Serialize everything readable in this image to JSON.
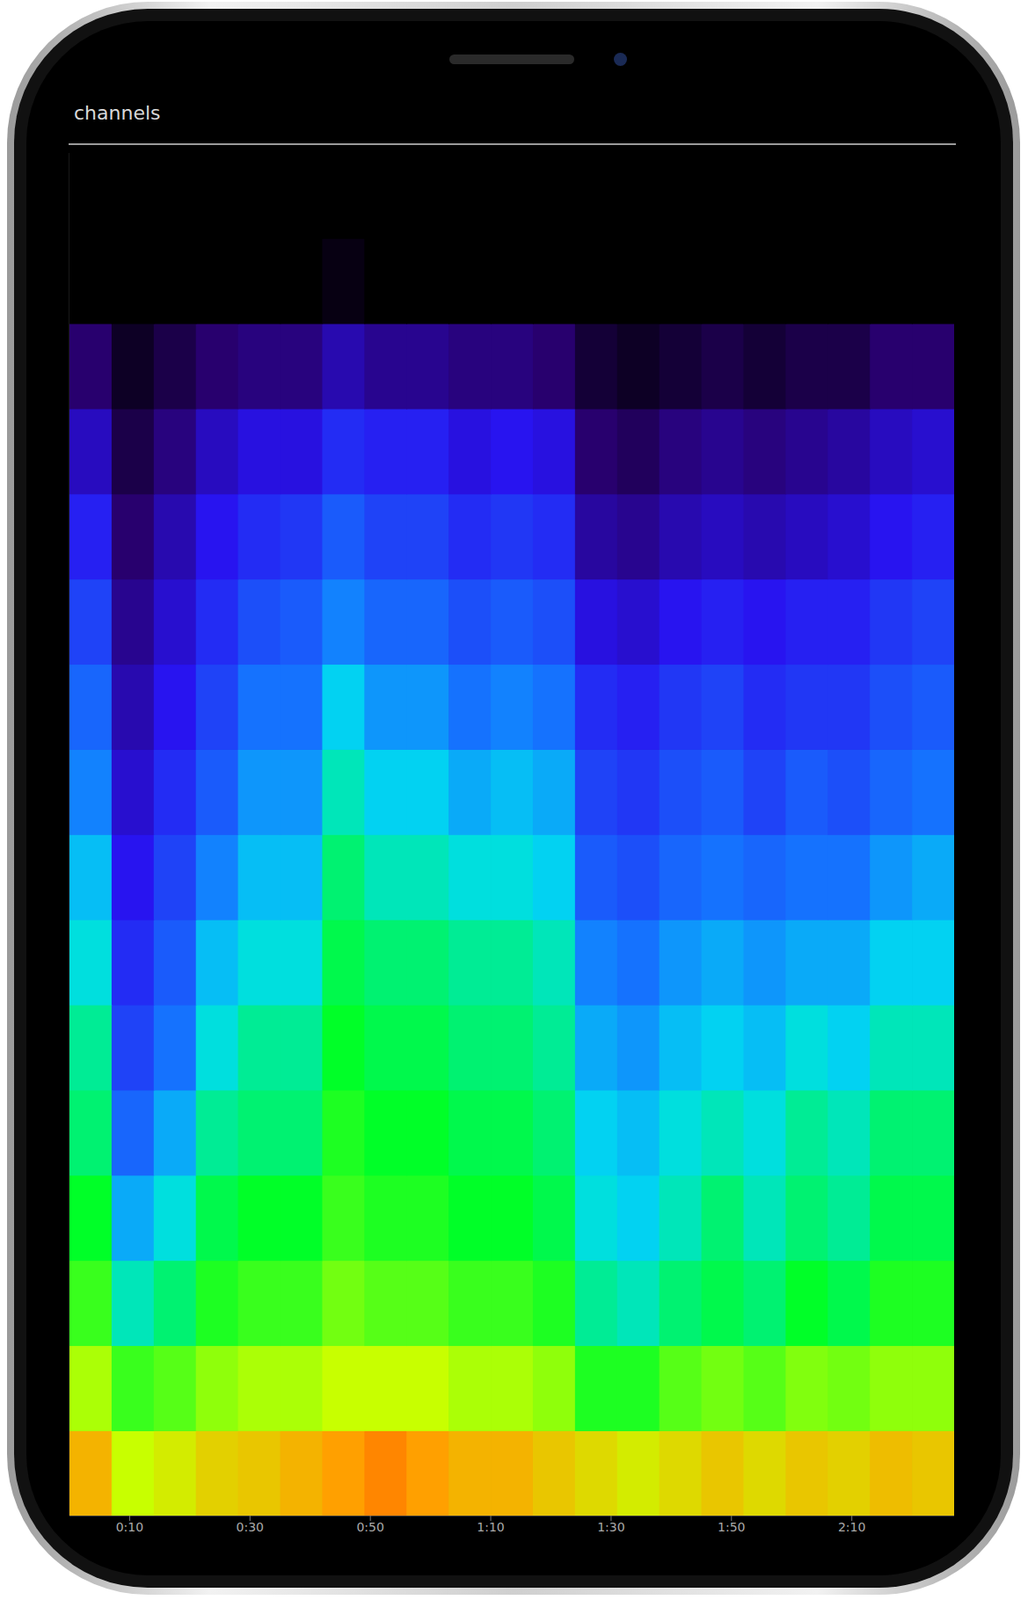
{
  "chart_data": {
    "type": "heatmap",
    "title": "channels",
    "x": [
      3.5,
      10.5,
      17.5,
      24.5,
      31.5,
      38.5,
      45.5,
      52.5,
      59.5,
      66.5,
      73.5,
      80.5,
      87.5,
      94.5,
      101.5,
      108.5,
      115.5,
      122.5,
      129.5,
      136.5,
      143.5
    ],
    "y": [
      0.5,
      1.5,
      2.5,
      3.5,
      4.5,
      5.5,
      6.5,
      7.5,
      8.5,
      9.5,
      10.5,
      11.5,
      12.5,
      13.5,
      14.5,
      15.5
    ],
    "cells": [
      [
        88,
        80,
        82,
        85,
        86,
        88,
        90,
        92,
        90,
        88,
        88,
        86,
        84,
        82,
        84,
        86,
        84,
        86,
        85,
        87,
        86
      ],
      [
        78,
        70,
        72,
        76,
        78,
        78,
        80,
        80,
        80,
        78,
        78,
        76,
        68,
        68,
        72,
        74,
        72,
        75,
        74,
        76,
        76
      ],
      [
        70,
        58,
        62,
        68,
        70,
        70,
        74,
        72,
        72,
        70,
        70,
        68,
        60,
        58,
        62,
        64,
        62,
        66,
        64,
        68,
        68
      ],
      [
        66,
        50,
        56,
        64,
        66,
        66,
        70,
        68,
        68,
        66,
        66,
        64,
        56,
        54,
        58,
        62,
        58,
        62,
        60,
        64,
        64
      ],
      [
        62,
        42,
        50,
        60,
        62,
        62,
        68,
        66,
        66,
        64,
        64,
        62,
        54,
        52,
        56,
        58,
        56,
        60,
        58,
        62,
        62
      ],
      [
        60,
        36,
        44,
        56,
        60,
        60,
        66,
        64,
        64,
        62,
        62,
        60,
        50,
        48,
        52,
        54,
        52,
        56,
        54,
        58,
        58
      ],
      [
        56,
        32,
        40,
        52,
        56,
        56,
        64,
        62,
        62,
        60,
        60,
        58,
        46,
        44,
        48,
        50,
        48,
        50,
        50,
        54,
        54
      ],
      [
        52,
        28,
        36,
        46,
        52,
        52,
        62,
        58,
        58,
        56,
        56,
        54,
        40,
        38,
        42,
        44,
        42,
        44,
        44,
        48,
        50
      ],
      [
        46,
        24,
        32,
        40,
        48,
        48,
        58,
        54,
        54,
        50,
        52,
        50,
        36,
        34,
        38,
        40,
        36,
        40,
        38,
        42,
        44
      ],
      [
        42,
        20,
        28,
        36,
        44,
        44,
        54,
        48,
        48,
        44,
        46,
        44,
        32,
        30,
        34,
        36,
        32,
        34,
        34,
        38,
        40
      ],
      [
        36,
        16,
        24,
        32,
        38,
        40,
        46,
        42,
        42,
        38,
        40,
        38,
        26,
        24,
        28,
        30,
        28,
        30,
        30,
        34,
        36
      ],
      [
        30,
        12,
        20,
        28,
        32,
        34,
        40,
        36,
        36,
        32,
        34,
        32,
        18,
        16,
        20,
        22,
        20,
        22,
        24,
        28,
        30
      ],
      [
        22,
        8,
        14,
        22,
        26,
        26,
        32,
        30,
        30,
        26,
        28,
        26,
        12,
        10,
        14,
        16,
        14,
        16,
        18,
        22,
        24
      ],
      [
        12,
        4,
        8,
        12,
        14,
        14,
        20,
        16,
        16,
        14,
        14,
        12,
        6,
        4,
        6,
        8,
        6,
        8,
        8,
        12,
        12
      ],
      [
        0,
        0,
        0,
        0,
        0,
        0,
        2,
        0,
        0,
        0,
        0,
        0,
        0,
        0,
        0,
        0,
        0,
        0,
        0,
        0,
        0
      ],
      [
        0,
        0,
        0,
        0,
        0,
        0,
        0,
        0,
        0,
        0,
        0,
        0,
        0,
        0,
        0,
        0,
        0,
        0,
        0,
        0,
        0
      ]
    ],
    "zlim": [
      0,
      100
    ],
    "xlim": [
      0,
      147
    ],
    "ylim": [
      0,
      16
    ],
    "xticks": [
      {
        "value": 10,
        "label": "0:10"
      },
      {
        "value": 30,
        "label": "0:30"
      },
      {
        "value": 50,
        "label": "0:50"
      },
      {
        "value": 70,
        "label": "1:10"
      },
      {
        "value": 90,
        "label": "1:30"
      },
      {
        "value": 110,
        "label": "1:50"
      },
      {
        "value": 130,
        "label": "2:10"
      }
    ],
    "tick_labels": "x"
  }
}
